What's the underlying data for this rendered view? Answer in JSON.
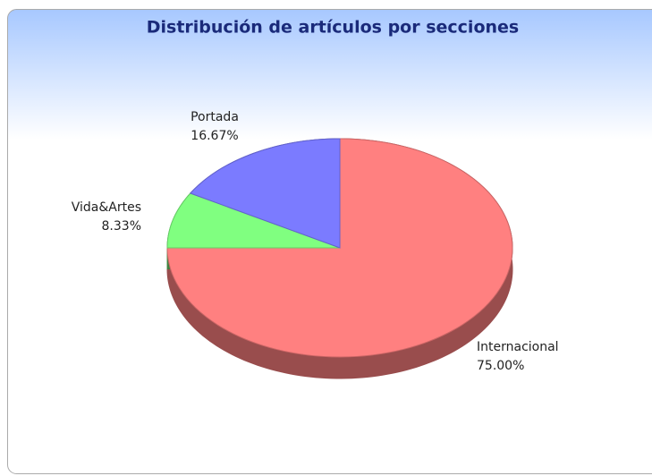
{
  "chart_data": {
    "type": "pie3d",
    "title": "Distribución de artículos por secciones",
    "categories": [
      "Internacional",
      "Vida&Artes",
      "Portada"
    ],
    "values": [
      75,
      8.33,
      16.67
    ],
    "value_labels": [
      "75.00%",
      "8.33%",
      "16.67%"
    ],
    "colors": [
      "#ff8080",
      "#80ff80",
      "#7b7bff"
    ]
  }
}
